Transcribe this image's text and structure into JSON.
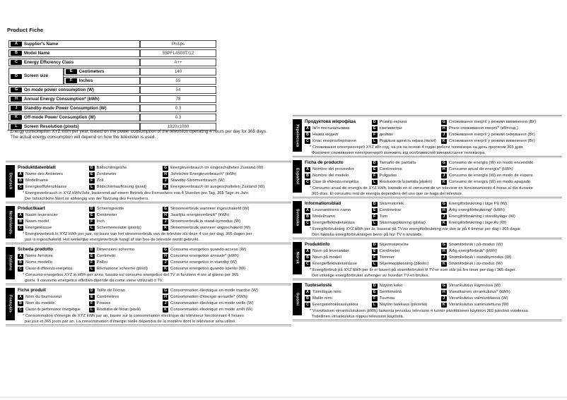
{
  "page_title": "Product Fiche",
  "colors": {
    "badge_bg": "#000000",
    "badge_fg": "#ffffff",
    "table_border": "#4a4a4a"
  },
  "product_table": {
    "rows": [
      {
        "badge": "A",
        "label": "Supplier's Name",
        "value": "Philips"
      },
      {
        "badge": "B",
        "label": "Model Name",
        "value": "55PFL4508T/12"
      },
      {
        "badge": "C",
        "label": "Energy Efficiency Class",
        "value": "A++"
      },
      {
        "badge": "D",
        "label": "Screen size",
        "sub": [
          {
            "badge": "E",
            "label": "Centimeters",
            "value": "140"
          },
          {
            "badge": "F",
            "label": "Inches",
            "value": "55"
          }
        ]
      },
      {
        "badge": "G",
        "label": "On mode power consumption (W)",
        "value": "54"
      },
      {
        "badge": "H",
        "label": "Annual Energy Consumption* (kWh)",
        "value": "78"
      },
      {
        "badge": "J",
        "label": "Standby-mode Power Consumption (W)",
        "value": "0.3"
      },
      {
        "badge": "K",
        "label": "Off-mode Power Consumption (W)",
        "value": "0.3"
      },
      {
        "badge": "L",
        "label": "Screen Resolution (pixels)",
        "value": "1920x1080"
      }
    ]
  },
  "footnote_lines": [
    "* Energy consumption XYZ kWh per year, based on the power consumption of the television operating 4 hours per day for 365 days.",
    "The actual energy consumption will depend on how the television is used."
  ],
  "language_columns": {
    "left": [
      {
        "name": "Deutsch",
        "title": "Produktdatenblatt",
        "items": {
          "A": "Name des Anbieters",
          "B": "Modellname",
          "C": "Energieeffizienzklasse",
          "D": "Bildschirmgröße",
          "E": "Zentimeter",
          "F": "Zoll",
          "L": "Bildschirmauflösung (pixel)",
          "G": "Energieverbrauch im eingeschalteten Zustand (W)",
          "H": "Jährlicher Energieverbrauch* (kWh)",
          "J": "Standby-Stromverbrauch (W)",
          "K": "Energieverbrauch im ausgeschalteten Zustand (W)"
        },
        "note_lines": [
          "* Energieverbrauch in XYZ kWh/Jahr, basierend auf einem Betrieb des Fernsehers von 4 Stunden pro Tag, 365 Tage im Jahr.",
          "Der tatsächliche Wert ist abhängig von der Nutzung des Fernsehers."
        ]
      },
      {
        "name": "Nederlands",
        "title": "Productkaart",
        "items": {
          "A": "Naam leverancier",
          "B": "Naam model",
          "C": "Energieklasse",
          "D": "Schermgrootte",
          "E": "Centimeter",
          "F": "Inch",
          "L": "Schermresolutie (pixels)",
          "G": "Stroomverbruik wanneer ingeschakeld (W)",
          "H": "Jaarlijks energieverbruik* (kWh)",
          "J": "Stroomverbruik in stand-bymodus (W)",
          "K": "Stroomverbruik wanneer uitgeschakeld (W)"
        },
        "note_lines": [
          "* Energieverbruik in XYZ kWh per jaar, op basis van het stroomverbruik van de televisie als deze 4 uur per dag, 365 dagen per",
          "jaar is ingeschakeld. Het werkelijke energieverbruik hangt af van hoe de televisie wordt gebruikt."
        ]
      },
      {
        "name": "Italiano",
        "title": "Scheda prodotto",
        "items": {
          "A": "Nome fornitore",
          "B": "Nome modello",
          "C": "Classe di efficienza energetica",
          "D": "Dimensioni schermo",
          "E": "Centimetri",
          "F": "Pollici",
          "L": "Risoluzione schermo (pixel)",
          "G": "Consumo energetico quando acceso (W)",
          "H": "Consumo energetico annuale* (kWh)",
          "J": "Consumo energetico in standby (W)",
          "K": "Consumo energetico quando spento (W)"
        },
        "note_lines": [
          "* Consumo energetico XYZ in kWh per anno, basato sul consumo energetico del TV in funzione 4 ore al giorno per 365",
          "giorni. Il consumo energetico effettivo dipende da come viene utilizzato il TV."
        ]
      },
      {
        "name": "Français",
        "title": "Fiche produit",
        "items": {
          "A": "Nom du fournisseur",
          "B": "Nom du modèle",
          "C": "Classe de performance énergétique",
          "D": "Taille de l'écran",
          "E": "Centimètres",
          "F": "Pouces",
          "L": "Résolution de l'écran (pixels)",
          "G": "Consommation électrique en mode marche (W)",
          "H": "Consommation d'énergie annuelle* (kWh)",
          "J": "Consommation électrique en mode veille (W)",
          "K": "Consommation électrique en mode arrêt (W)"
        },
        "note_lines": [
          "* Consommation d'énergie de XYZ kWh par an, basée sur la consommation électrique du téléviseur fonctionnant 4 heures",
          "par jour et 365 jours par an. La consommation d'énergie réelle dépendra de la manière dont le téléviseur sera utilisé."
        ]
      }
    ],
    "right": [
      {
        "name": "Українська",
        "title": "Продуктова мікрофіша",
        "items": {
          "A": "Ім'я постачальника",
          "B": "Назва моделі",
          "C": "Клас енергозберігання",
          "D": "Розмір екрана",
          "E": "сантиметри",
          "F": "дюйми",
          "L": "Роздільна здатність екрана (піксел)",
          "G": "Споживання енергії у режимі ввімкнення (Вт)",
          "H": "Річне споживання енергії* (кВт-год.)",
          "J": "Споживання енергії у режимі очікування (Вт)",
          "K": "Споживання енергії у режимі вимкнення (Вт)"
        },
        "note_lines": [
          "* Споживання електроенергії XYZ кВт-год. на рік на основі 4 годин роботи телевізора на день протягом 365 днів.",
          "Фактичне споживання електроенергії залежить від особливостей використання телевізора."
        ]
      },
      {
        "name": "Español",
        "title": "Ficha de producto",
        "items": {
          "A": "Nombre del proveedor",
          "B": "Nombre del modelo",
          "C": "Clase de eficiencia energética",
          "D": "Tamaño de pantalla",
          "E": "Centímetros",
          "F": "Pulgadas",
          "L": "Resolución de la pantalla (píxeles)",
          "G": "Consumo de energía (W) en modo encendido",
          "H": "Consumo anual de energía* (kWh)",
          "J": "Consumo de energía (W) en modo de espera",
          "K": "Consumo de energía (W) en modo apagado"
        },
        "note_lines": [
          "* Consumo anual de energía de XYZ kWh, basado en el consumo de un televisor en funcionamiento 4 horas al día durante",
          "365 días. El consumo real de energía dependerá del uso que se haga del televisor."
        ]
      },
      {
        "name": "Svenska",
        "title": "Informationsblad",
        "items": {
          "A": "Leverantörens namn",
          "B": "Modellnamn",
          "C": "Energieffektivitetsklass",
          "D": "Skärmstorlek",
          "E": "Centimetrar",
          "F": "Tum",
          "L": "Skärmupplösning (pixlar)",
          "G": "Energiförbrukning i läge På (W)",
          "H": "Årlig energiförbrukning* (kWh)",
          "J": "Energiförbrukning i standbyläge (W)",
          "K": "Energiförbrukning i läge Av (W)"
        },
        "note_lines": [
          "* Energiförbrukning XYZ kWh per år, baserat på TV:ns energiförbrukning när den är på 4 timmar per dag i 365 dagar.",
          "Den faktiska energiförbrukningen beror på hur TV:n används."
        ]
      },
      {
        "name": "Norsk",
        "title": "Produktinfo",
        "items": {
          "A": "Navn på leverandør",
          "B": "Navn på modell",
          "C": "Energieffektivitetsklasse",
          "D": "Skjermstørrelse",
          "E": "Centimeter",
          "F": "Tommer",
          "L": "Skjermoppløsning (piksler)",
          "G": "Strømforbruk i på-modus (W)",
          "H": "Årlig energiforbruk* (kWh)",
          "J": "Strømforbruk i standbymodus (W)",
          "K": "Strømforbruk i av-modus (W)"
        },
        "note_lines": [
          "* Energiforbruk på XYZ kWh per år er basert på strømforbruket til TV-er som står på fire timer per dag i 365 dager.",
          "Det virkelige energiforbruket avhenger av hvordan TV-en brukes."
        ]
      },
      {
        "name": "Suomi",
        "title": "Tuoteseloste",
        "items": {
          "A": "Toimittajan nimi",
          "B": "Mallin nimi",
          "C": "Energiatehokkuusluokka",
          "D": "Näytön koko",
          "E": "Senttimetriä",
          "F": "Tuumaa",
          "L": "Näytön tarkkuus (pikseliä)",
          "G": "Virrankulutus käynnissä (W)",
          "H": "Vuosittainen virrankulutus* (kWh)",
          "J": "Virrankulutus valmiustilassa (W)",
          "K": "Virrankulutus sammutettuna (W)"
        },
        "note_lines": [
          "* Vuosittaisen virrankulutuksen (kWh) laskenta perustuu television 4 tunnin päivittäiseen käyttöön 365 päivänä vuodessa.",
          "Todellinen virrankulutus riippuu television käytöstä."
        ]
      }
    ]
  }
}
